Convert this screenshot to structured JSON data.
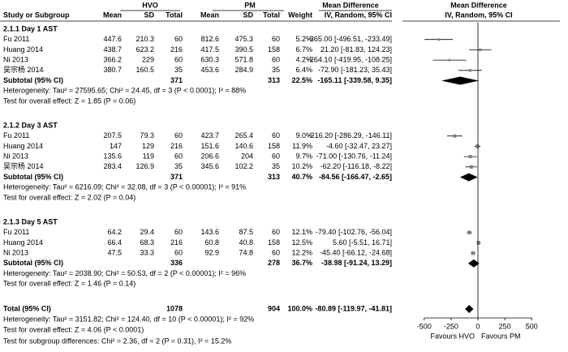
{
  "chart_data": {
    "type": "forest",
    "header": {
      "group1": "HVO",
      "group2": "PM",
      "effect": "Mean Difference",
      "plot": "Mean Difference",
      "columns": [
        "Study or Subgroup",
        "Mean",
        "SD",
        "Total",
        "Mean",
        "SD",
        "Total",
        "Weight",
        "IV, Random, 95% CI"
      ],
      "plot_method": "IV, Random, 95% CI"
    },
    "groups": [
      {
        "title": "2.1.1 Day 1 AST",
        "studies": [
          {
            "name": "Fu 2011",
            "m1": 447.6,
            "sd1": 210.3,
            "n1": 60,
            "m2": 812.6,
            "sd2": 475.3,
            "n2": 60,
            "weight": 5.2,
            "weight_label": "5.2%",
            "md": -365,
            "lo": -496.51,
            "hi": -233.49,
            "label": "-365.00 [-496.51, -233.49]"
          },
          {
            "name": "Huang 2014",
            "m1": 438.7,
            "sd1": 623.2,
            "n1": 216,
            "m2": 417.5,
            "sd2": 390.5,
            "n2": 158,
            "weight": 6.7,
            "weight_label": "6.7%",
            "md": 21.2,
            "lo": -81.83,
            "hi": 124.23,
            "label": "21.20 [-81.83, 124.23]"
          },
          {
            "name": "Ni 2013",
            "m1": 366.2,
            "sd1": 229,
            "n1": 60,
            "m2": 630.3,
            "sd2": 571.8,
            "n2": 60,
            "weight": 4.2,
            "weight_label": "4.2%",
            "md": -264.1,
            "lo": -419.95,
            "hi": -108.25,
            "label": "-264.10 [-419.95, -108.25]"
          },
          {
            "name": "吴宗杨 2014",
            "m1": 380.7,
            "sd1": 160.5,
            "n1": 35,
            "m2": 453.6,
            "sd2": 284.9,
            "n2": 35,
            "weight": 6.4,
            "weight_label": "6.4%",
            "md": -72.9,
            "lo": -181.23,
            "hi": 35.43,
            "label": "-72.90 [-181.23, 35.43]"
          }
        ],
        "subtotal": {
          "name": "Subtotal (95% CI)",
          "n1": 371,
          "n2": 313,
          "weight_label": "22.5%",
          "md": -165.11,
          "lo": -339.58,
          "hi": 9.35,
          "label": "-165.11 [-339.58, 9.35]"
        },
        "heterogeneity": "Heterogeneity: Tau² = 27595.65; Chi² = 24.45, df = 3 (P < 0.0001); I² = 88%",
        "test": "Test for overall effect: Z = 1.85 (P = 0.06)"
      },
      {
        "title": "2.1.2 Day 3 AST",
        "studies": [
          {
            "name": "Fu 2011",
            "m1": 207.5,
            "sd1": 79.3,
            "n1": 60,
            "m2": 423.7,
            "sd2": 265.4,
            "n2": 60,
            "weight": 9,
            "weight_label": "9.0%",
            "md": -216.2,
            "lo": -286.29,
            "hi": -146.11,
            "label": "-216.20 [-286.29, -146.11]"
          },
          {
            "name": "Huang 2014",
            "m1": 147,
            "sd1": 129,
            "n1": 216,
            "m2": 151.6,
            "sd2": 140.6,
            "n2": 158,
            "weight": 11.9,
            "weight_label": "11.9%",
            "md": -4.6,
            "lo": -32.47,
            "hi": 23.27,
            "label": "-4.60 [-32.47, 23.27]"
          },
          {
            "name": "Ni 2013",
            "m1": 135.6,
            "sd1": 119,
            "n1": 60,
            "m2": 206.6,
            "sd2": 204,
            "n2": 60,
            "weight": 9.7,
            "weight_label": "9.7%",
            "md": -71,
            "lo": -130.76,
            "hi": -11.24,
            "label": "-71.00 [-130.76, -11.24]"
          },
          {
            "name": "吴宗杨 2014",
            "m1": 283.4,
            "sd1": 126.9,
            "n1": 35,
            "m2": 345.6,
            "sd2": 102.2,
            "n2": 35,
            "weight": 10.2,
            "weight_label": "10.2%",
            "md": -62.2,
            "lo": -116.18,
            "hi": -8.22,
            "label": "-62.20 [-116.18, -8.22]"
          }
        ],
        "subtotal": {
          "name": "Subtotal (95% CI)",
          "n1": 371,
          "n2": 313,
          "weight_label": "40.7%",
          "md": -84.56,
          "lo": -166.47,
          "hi": -2.65,
          "label": "-84.56 [-166.47, -2.65]"
        },
        "heterogeneity": "Heterogeneity: Tau² = 6216.09; Chi² = 32.08, df = 3 (P < 0.00001); I² = 91%",
        "test": "Test for overall effect: Z = 2.02 (P = 0.04)"
      },
      {
        "title": "2.1.3 Day 5 AST",
        "studies": [
          {
            "name": "Fu 2011",
            "m1": 64.2,
            "sd1": 29.4,
            "n1": 60,
            "m2": 143.6,
            "sd2": 87.5,
            "n2": 60,
            "weight": 12.1,
            "weight_label": "12.1%",
            "md": -79.4,
            "lo": -102.76,
            "hi": -56.04,
            "label": "-79.40 [-102.76, -56.04]"
          },
          {
            "name": "Huang 2014",
            "m1": 66.4,
            "sd1": 68.3,
            "n1": 216,
            "m2": 60.8,
            "sd2": 40.8,
            "n2": 158,
            "weight": 12.5,
            "weight_label": "12.5%",
            "md": 5.6,
            "lo": -5.51,
            "hi": 16.71,
            "label": "5.60 [-5.51, 16.71]"
          },
          {
            "name": "Ni 2013",
            "m1": 47.5,
            "sd1": 33.3,
            "n1": 60,
            "m2": 92.9,
            "sd2": 74.8,
            "n2": 60,
            "weight": 12.2,
            "weight_label": "12.2%",
            "md": -45.4,
            "lo": -66.12,
            "hi": -24.68,
            "label": "-45.40 [-66.12, -24.68]"
          }
        ],
        "subtotal": {
          "name": "Subtotal (95% CI)",
          "n1": 336,
          "n2": 278,
          "weight_label": "36.7%",
          "md": -38.98,
          "lo": -91.24,
          "hi": 13.29,
          "label": "-38.98 [-91.24, 13.29]"
        },
        "heterogeneity": "Heterogeneity: Tau² = 2038.90; Chi² = 50.53, df = 2 (P < 0.00001); I² = 96%",
        "test": "Test for overall effect: Z = 1.46 (P = 0.14)"
      }
    ],
    "total": {
      "name": "Total (95% CI)",
      "n1": 1078,
      "n2": 904,
      "weight_label": "100.0%",
      "md": -80.89,
      "lo": -119.97,
      "hi": -41.81,
      "label": "-80.89 [-119.97, -41.81]"
    },
    "total_heterogeneity": "Heterogeneity: Tau² = 3151.82; Chi² = 124.40, df = 10 (P < 0.00001); I² = 92%",
    "total_test": "Test for overall effect: Z = 4.06 (P < 0.0001)",
    "subgroup_test": "Test for subgroup differences: Chi² = 2.36, df = 2 (P = 0.31), I² = 15.2%",
    "xlim": [
      -800,
      800
    ],
    "xticks": [
      -500,
      -250,
      0,
      250,
      500
    ],
    "x_left_label": "Favours HVO",
    "x_right_label": "Favours PM",
    "color": "#000000"
  }
}
